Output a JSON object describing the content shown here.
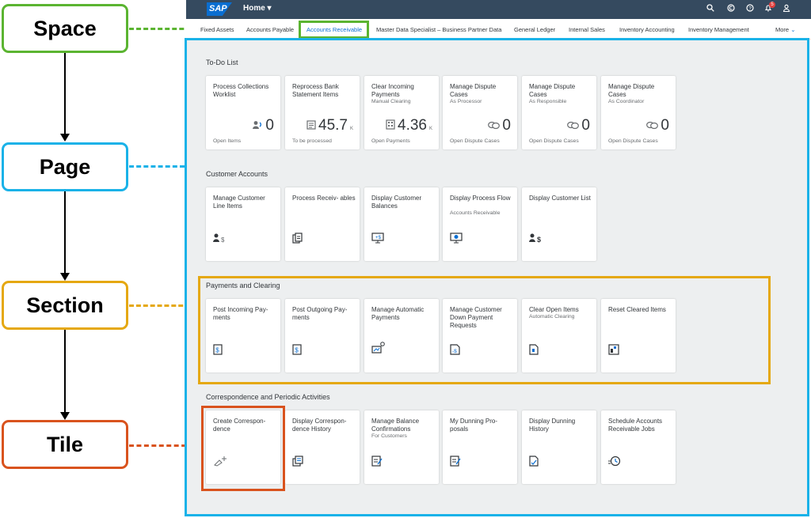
{
  "legend": {
    "space": "Space",
    "page": "Page",
    "section": "Section",
    "tile": "Tile"
  },
  "colors": {
    "space": "#5bb431",
    "page": "#1ab2e8",
    "section": "#e5a812",
    "tile": "#d9531e",
    "shell": "#354a5f",
    "accent": "#0a6ed1"
  },
  "shell": {
    "logo": "SAP",
    "home": "Home ▾",
    "icons": [
      "search-icon",
      "copilot-icon",
      "help-icon",
      "bell-icon",
      "user-icon"
    ],
    "notification_count": "5"
  },
  "spaces": {
    "tabs": [
      "Fixed Assets",
      "Accounts Payable",
      "Accounts Receivable",
      "Master Data Specialist – Business Partner Data",
      "General Ledger",
      "Internal Sales",
      "Inventory Accounting",
      "Inventory Management"
    ],
    "active": "Accounts Receivable",
    "more": "More"
  },
  "sections": [
    {
      "title": "To-Do List",
      "tiles": [
        {
          "title": "Process Collections Worklist",
          "subtitle": "",
          "kpi": "0",
          "unit": "",
          "footer": "Open Items",
          "icon": "collections-icon"
        },
        {
          "title": "Reprocess Bank Statement Items",
          "subtitle": "",
          "kpi": "45.7",
          "unit": "K",
          "footer": "To be processed",
          "icon": "bank-statement-icon"
        },
        {
          "title": "Clear Incoming Payments",
          "subtitle": "Manual Clearing",
          "kpi": "4.36",
          "unit": "K",
          "footer": "Open Payments",
          "icon": "clear-payments-icon"
        },
        {
          "title": "Manage Dispute Cases",
          "subtitle": "As Processor",
          "kpi": "0",
          "unit": "",
          "footer": "Open Dispute Cases",
          "icon": "dispute-icon"
        },
        {
          "title": "Manage Dispute Cases",
          "subtitle": "As Responsible",
          "kpi": "0",
          "unit": "",
          "footer": "Open Dispute Cases",
          "icon": "dispute-icon"
        },
        {
          "title": "Manage Dispute Cases",
          "subtitle": "As Coordinator",
          "kpi": "0",
          "unit": "",
          "footer": "Open Dispute Cases",
          "icon": "dispute-icon"
        }
      ]
    },
    {
      "title": "Customer Accounts",
      "tiles": [
        {
          "title": "Manage Customer Line Items",
          "subtitle": "",
          "icon": "customer-line-items-icon"
        },
        {
          "title": "Process Receiv- ables",
          "subtitle": "",
          "icon": "receivables-icon"
        },
        {
          "title": "Display Customer Balances",
          "subtitle": "",
          "icon": "balances-icon"
        },
        {
          "title": "Display Process Flow",
          "subtitle": "Accounts Receivable",
          "icon": "process-flow-icon"
        },
        {
          "title": "Display Customer List",
          "subtitle": "",
          "icon": "customer-list-icon"
        }
      ]
    },
    {
      "title": "Payments and Clearing",
      "tiles": [
        {
          "title": "Post Incoming Pay- ments",
          "subtitle": "",
          "icon": "dollar-document-icon"
        },
        {
          "title": "Post Outgoing Pay- ments",
          "subtitle": "",
          "icon": "dollar-document-icon"
        },
        {
          "title": "Manage Automatic Payments",
          "subtitle": "",
          "icon": "automatic-payments-icon"
        },
        {
          "title": "Manage Customer Down Payment Requests",
          "subtitle": "",
          "icon": "down-payment-icon"
        },
        {
          "title": "Clear Open Items",
          "subtitle": "Automatic Clearing",
          "icon": "clear-items-icon"
        },
        {
          "title": "Reset Cleared Items",
          "subtitle": "",
          "icon": "reset-items-icon"
        }
      ]
    },
    {
      "title": "Correspondence and Periodic Activities",
      "tiles": [
        {
          "title": "Create Correspon- dence",
          "subtitle": "",
          "icon": "create-correspondence-icon"
        },
        {
          "title": "Display Correspon- dence History",
          "subtitle": "",
          "icon": "correspondence-history-icon"
        },
        {
          "title": "Manage Balance Confirmations",
          "subtitle": "For Customers",
          "icon": "balance-confirmation-icon"
        },
        {
          "title": "My Dunning Pro- posals",
          "subtitle": "",
          "icon": "dunning-proposals-icon"
        },
        {
          "title": "Display Dunning History",
          "subtitle": "",
          "icon": "dunning-history-icon"
        },
        {
          "title": "Schedule Accounts Receivable Jobs",
          "subtitle": "",
          "icon": "schedule-jobs-icon"
        }
      ]
    }
  ]
}
